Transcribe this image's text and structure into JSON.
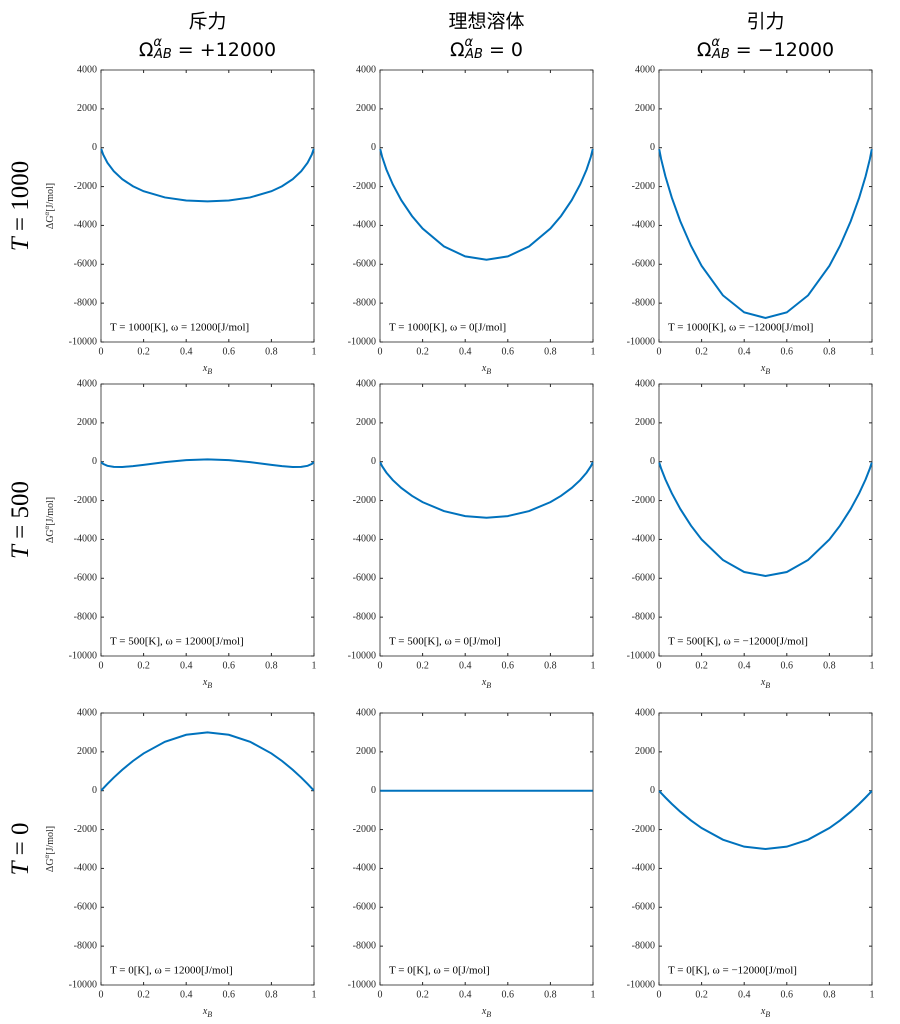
{
  "chart_data": [
    {
      "type": "line",
      "title": "斥力",
      "subtitle": [
        "Ω",
        "α",
        "AB",
        " = +12000"
      ],
      "row_label": [
        "T",
        " = 1000"
      ],
      "ylabel": [
        "ΔG",
        "α",
        "[J/mol]"
      ],
      "xlabel": [
        "x",
        "B"
      ],
      "annotation": "T = 1000[K], ω = 12000[J/mol]",
      "x": [
        0.001,
        0.01,
        0.03,
        0.06,
        0.1,
        0.15,
        0.2,
        0.3,
        0.4,
        0.5,
        0.6,
        0.7,
        0.8,
        0.85,
        0.9,
        0.94,
        0.97,
        0.99,
        0.999
      ],
      "values": [
        -54,
        -347,
        -771,
        -1210,
        -1623,
        -1984,
        -2240,
        -2559,
        -2715,
        -2763,
        -2715,
        -2559,
        -2240,
        -1984,
        -1623,
        -1210,
        -771,
        -347,
        -54
      ],
      "color": "#0072bd",
      "xlim": [
        0,
        1
      ],
      "ylim": [
        -10000,
        4000
      ],
      "xticks": [
        0,
        0.2,
        0.4,
        0.6,
        0.8,
        1
      ],
      "yticks": [
        -10000,
        -8000,
        -6000,
        -4000,
        -2000,
        0,
        2000,
        4000
      ]
    },
    {
      "type": "line",
      "title": "理想溶体",
      "subtitle": [
        "Ω",
        "α",
        "AB",
        " = 0"
      ],
      "xlabel": [
        "x",
        "B"
      ],
      "annotation": "T = 1000[K], ω = 0[J/mol]",
      "x": [
        0.001,
        0.01,
        0.03,
        0.06,
        0.1,
        0.15,
        0.2,
        0.3,
        0.4,
        0.5,
        0.6,
        0.7,
        0.8,
        0.85,
        0.9,
        0.94,
        0.97,
        0.99,
        0.999
      ],
      "values": [
        -66,
        -466,
        -1120,
        -1887,
        -2703,
        -3514,
        -4160,
        -5079,
        -5595,
        -5763,
        -5595,
        -5079,
        -4160,
        -3514,
        -2703,
        -1887,
        -1120,
        -466,
        -66
      ],
      "color": "#0072bd",
      "xlim": [
        0,
        1
      ],
      "ylim": [
        -10000,
        4000
      ],
      "xticks": [
        0,
        0.2,
        0.4,
        0.6,
        0.8,
        1
      ],
      "yticks": [
        -10000,
        -8000,
        -6000,
        -4000,
        -2000,
        0,
        2000,
        4000
      ]
    },
    {
      "type": "line",
      "title": "引力",
      "subtitle": [
        "Ω",
        "α",
        "AB",
        " = −12000"
      ],
      "xlabel": [
        "x",
        "B"
      ],
      "annotation": "T = 1000[K], ω = −12000[J/mol]",
      "x": [
        0.001,
        0.01,
        0.03,
        0.06,
        0.1,
        0.15,
        0.2,
        0.3,
        0.4,
        0.5,
        0.6,
        0.7,
        0.8,
        0.85,
        0.9,
        0.94,
        0.97,
        0.99,
        0.999
      ],
      "values": [
        -78,
        -585,
        -1469,
        -2564,
        -3783,
        -5044,
        -6080,
        -7599,
        -8475,
        -8763,
        -8475,
        -7599,
        -6080,
        -5044,
        -3783,
        -2564,
        -1469,
        -585,
        -78
      ],
      "color": "#0072bd",
      "xlim": [
        0,
        1
      ],
      "ylim": [
        -10000,
        4000
      ],
      "xticks": [
        0,
        0.2,
        0.4,
        0.6,
        0.8,
        1
      ],
      "yticks": [
        -10000,
        -8000,
        -6000,
        -4000,
        -2000,
        0,
        2000,
        4000
      ]
    },
    {
      "type": "line",
      "row_label": [
        "T",
        " = 500"
      ],
      "ylabel": [
        "ΔG",
        "α",
        "[J/mol]"
      ],
      "xlabel": [
        "x",
        "B"
      ],
      "annotation": "T = 500[K], ω = 12000[J/mol]",
      "x": [
        0.001,
        0.01,
        0.03,
        0.06,
        0.1,
        0.15,
        0.2,
        0.3,
        0.4,
        0.5,
        0.6,
        0.7,
        0.8,
        0.85,
        0.9,
        0.94,
        0.97,
        0.99,
        0.999
      ],
      "values": [
        -21,
        -114,
        -211,
        -267,
        -271,
        -227,
        -160,
        -19,
        82,
        119,
        82,
        -19,
        -160,
        -227,
        -271,
        -267,
        -211,
        -114,
        -21
      ],
      "color": "#0072bd",
      "xlim": [
        0,
        1
      ],
      "ylim": [
        -10000,
        4000
      ],
      "xticks": [
        0,
        0.2,
        0.4,
        0.6,
        0.8,
        1
      ],
      "yticks": [
        -10000,
        -8000,
        -6000,
        -4000,
        -2000,
        0,
        2000,
        4000
      ]
    },
    {
      "type": "line",
      "xlabel": [
        "x",
        "B"
      ],
      "annotation": "T = 500[K], ω = 0[J/mol]",
      "x": [
        0.001,
        0.01,
        0.03,
        0.06,
        0.1,
        0.15,
        0.2,
        0.3,
        0.4,
        0.5,
        0.6,
        0.7,
        0.8,
        0.85,
        0.9,
        0.94,
        0.97,
        0.99,
        0.999
      ],
      "values": [
        -33,
        -233,
        -560,
        -944,
        -1351,
        -1757,
        -2080,
        -2539,
        -2798,
        -2881,
        -2798,
        -2539,
        -2080,
        -1757,
        -1351,
        -944,
        -560,
        -233,
        -33
      ],
      "color": "#0072bd",
      "xlim": [
        0,
        1
      ],
      "ylim": [
        -10000,
        4000
      ],
      "xticks": [
        0,
        0.2,
        0.4,
        0.6,
        0.8,
        1
      ],
      "yticks": [
        -10000,
        -8000,
        -6000,
        -4000,
        -2000,
        0,
        2000,
        4000
      ]
    },
    {
      "type": "line",
      "xlabel": [
        "x",
        "B"
      ],
      "annotation": "T = 500[K], ω = −12000[J/mol]",
      "x": [
        0.001,
        0.01,
        0.03,
        0.06,
        0.1,
        0.15,
        0.2,
        0.3,
        0.4,
        0.5,
        0.6,
        0.7,
        0.8,
        0.85,
        0.9,
        0.94,
        0.97,
        0.99,
        0.999
      ],
      "values": [
        -45,
        -352,
        -909,
        -1621,
        -2431,
        -3287,
        -4000,
        -5059,
        -5678,
        -5881,
        -5678,
        -5059,
        -4000,
        -3287,
        -2431,
        -1621,
        -909,
        -352,
        -45
      ],
      "color": "#0072bd",
      "xlim": [
        0,
        1
      ],
      "ylim": [
        -10000,
        4000
      ],
      "xticks": [
        0,
        0.2,
        0.4,
        0.6,
        0.8,
        1
      ],
      "yticks": [
        -10000,
        -8000,
        -6000,
        -4000,
        -2000,
        0,
        2000,
        4000
      ]
    },
    {
      "type": "line",
      "row_label": [
        "T",
        " = 0"
      ],
      "ylabel": [
        "ΔG",
        "α",
        "[J/mol]"
      ],
      "xlabel": [
        "x",
        "B"
      ],
      "annotation": "T = 0[K], ω = 12000[J/mol]",
      "x": [
        0.001,
        0.01,
        0.03,
        0.06,
        0.1,
        0.15,
        0.2,
        0.3,
        0.4,
        0.5,
        0.6,
        0.7,
        0.8,
        0.85,
        0.9,
        0.94,
        0.97,
        0.99,
        0.999
      ],
      "values": [
        12,
        119,
        349,
        677,
        1080,
        1530,
        1920,
        2520,
        2880,
        3000,
        2880,
        2520,
        1920,
        1530,
        1080,
        677,
        349,
        119,
        12
      ],
      "color": "#0072bd",
      "xlim": [
        0,
        1
      ],
      "ylim": [
        -10000,
        4000
      ],
      "xticks": [
        0,
        0.2,
        0.4,
        0.6,
        0.8,
        1
      ],
      "yticks": [
        -10000,
        -8000,
        -6000,
        -4000,
        -2000,
        0,
        2000,
        4000
      ]
    },
    {
      "type": "line",
      "xlabel": [
        "x",
        "B"
      ],
      "annotation": "T = 0[K], ω = 0[J/mol]",
      "x": [
        0.001,
        0.01,
        0.03,
        0.06,
        0.1,
        0.15,
        0.2,
        0.3,
        0.4,
        0.5,
        0.6,
        0.7,
        0.8,
        0.85,
        0.9,
        0.94,
        0.97,
        0.99,
        0.999
      ],
      "values": [
        0,
        0,
        0,
        0,
        0,
        0,
        0,
        0,
        0,
        0,
        0,
        0,
        0,
        0,
        0,
        0,
        0,
        0,
        0
      ],
      "color": "#0072bd",
      "xlim": [
        0,
        1
      ],
      "ylim": [
        -10000,
        4000
      ],
      "xticks": [
        0,
        0.2,
        0.4,
        0.6,
        0.8,
        1
      ],
      "yticks": [
        -10000,
        -8000,
        -6000,
        -4000,
        -2000,
        0,
        2000,
        4000
      ]
    },
    {
      "type": "line",
      "xlabel": [
        "x",
        "B"
      ],
      "annotation": "T = 0[K], ω = −12000[J/mol]",
      "x": [
        0.001,
        0.01,
        0.03,
        0.06,
        0.1,
        0.15,
        0.2,
        0.3,
        0.4,
        0.5,
        0.6,
        0.7,
        0.8,
        0.85,
        0.9,
        0.94,
        0.97,
        0.99,
        0.999
      ],
      "values": [
        -12,
        -119,
        -349,
        -677,
        -1080,
        -1530,
        -1920,
        -2520,
        -2880,
        -3000,
        -2880,
        -2520,
        -1920,
        -1530,
        -1080,
        -677,
        -349,
        -119,
        -12
      ],
      "color": "#0072bd",
      "xlim": [
        0,
        1
      ],
      "ylim": [
        -10000,
        4000
      ],
      "xticks": [
        0,
        0.2,
        0.4,
        0.6,
        0.8,
        1
      ],
      "yticks": [
        -10000,
        -8000,
        -6000,
        -4000,
        -2000,
        0,
        2000,
        4000
      ]
    }
  ]
}
